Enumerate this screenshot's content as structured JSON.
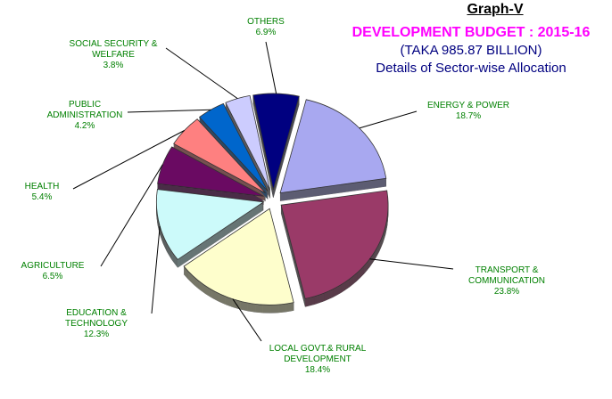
{
  "header": {
    "graph_label": "Graph-V",
    "title": "DEVELOPMENT BUDGET : 2015-16",
    "subtitle": "(TAKA 985.87 BILLION)",
    "description": "Details of Sector-wise Allocation"
  },
  "colors": {
    "title": "#ff00ff",
    "subtitle": "#000080",
    "label_text": "#008000",
    "leader_line": "#000000"
  },
  "chart_data": {
    "type": "pie",
    "style": "3d-exploded",
    "start_angle_clockwise_from_north": 14,
    "legend": "none",
    "slices": [
      {
        "name_lines": [
          "ENERGY & POWER"
        ],
        "pct_label": "18.7%",
        "value": 18.7,
        "color": "#a8a8f0"
      },
      {
        "name_lines": [
          "TRANSPORT &",
          "COMMUNICATION"
        ],
        "pct_label": "23.8%",
        "value": 23.8,
        "color": "#9a3a68"
      },
      {
        "name_lines": [
          "LOCAL GOVT.& RURAL",
          "DEVELOPMENT"
        ],
        "pct_label": "18.4%",
        "value": 18.4,
        "color": "#fefecc"
      },
      {
        "name_lines": [
          "EDUCATION &",
          "TECHNOLOGY"
        ],
        "pct_label": "12.3%",
        "value": 12.3,
        "color": "#ccfafa"
      },
      {
        "name_lines": [
          "AGRICULTURE"
        ],
        "pct_label": "6.5%",
        "value": 6.5,
        "color": "#6a0a62"
      },
      {
        "name_lines": [
          "HEALTH"
        ],
        "pct_label": "5.4%",
        "value": 5.4,
        "color": "#fe8080"
      },
      {
        "name_lines": [
          "PUBLIC",
          "ADMINISTRATION"
        ],
        "pct_label": "4.2%",
        "value": 4.2,
        "color": "#0066cc"
      },
      {
        "name_lines": [
          "SOCIAL SECURITY &",
          "WELFARE"
        ],
        "pct_label": "3.8%",
        "value": 3.8,
        "color": "#ccccfe"
      },
      {
        "name_lines": [
          "OTHERS"
        ],
        "pct_label": "6.9%",
        "value": 6.9,
        "color": "#000080"
      }
    ]
  }
}
